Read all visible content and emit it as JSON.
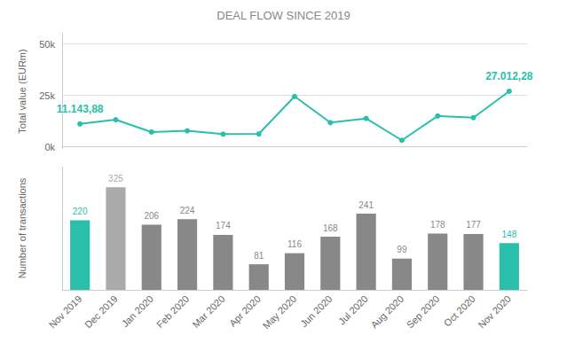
{
  "chart_data": [
    {
      "type": "line",
      "title": "DEAL FLOW SINCE 2019",
      "categories": [
        "Nov 2019",
        "Dec 2019",
        "Jan 2020",
        "Feb 2020",
        "Mar 2020",
        "Apr 2020",
        "May 2020",
        "Jun 2020",
        "Jul 2020",
        "Aug 2020",
        "Sep 2020",
        "Oct 2020",
        "Nov 2020"
      ],
      "values": [
        11143.88,
        13200,
        7200,
        7800,
        6200,
        6300,
        24500,
        11800,
        13800,
        3200,
        15000,
        14200,
        27012.28
      ],
      "color": "#2abfaa",
      "marker": "circle",
      "ylabel": "Total value (EURm)",
      "ylim": [
        -1000,
        55000
      ],
      "yticks": [
        {
          "value": 0,
          "label": "0k"
        },
        {
          "value": 25000,
          "label": "25k"
        },
        {
          "value": 50000,
          "label": "50k"
        }
      ],
      "grid": true,
      "tick_labels": "y",
      "annotations": [
        {
          "x": "Nov 2019",
          "y": 11143.88,
          "text": "11.143,88"
        },
        {
          "x": "Nov 2020",
          "y": 27012.28,
          "text": "27.012,28"
        }
      ]
    },
    {
      "type": "bar",
      "categories": [
        "Nov 2019",
        "Dec 2019",
        "Jan 2020",
        "Feb 2020",
        "Mar 2020",
        "Apr 2020",
        "May 2020",
        "Jun 2020",
        "Jul 2020",
        "Aug 2020",
        "Sep 2020",
        "Oct 2020",
        "Nov 2020"
      ],
      "values": [
        220,
        325,
        206,
        224,
        174,
        81,
        116,
        168,
        241,
        99,
        178,
        177,
        148
      ],
      "colors": [
        "#2abfaa",
        "#aaaaaa",
        "#888888",
        "#888888",
        "#888888",
        "#888888",
        "#888888",
        "#888888",
        "#888888",
        "#888888",
        "#888888",
        "#888888",
        "#2abfaa"
      ],
      "ylabel": "Number of transactions",
      "ylim": [
        0,
        390
      ],
      "grid": false,
      "tick_labels": "x",
      "data_labels": true
    }
  ]
}
